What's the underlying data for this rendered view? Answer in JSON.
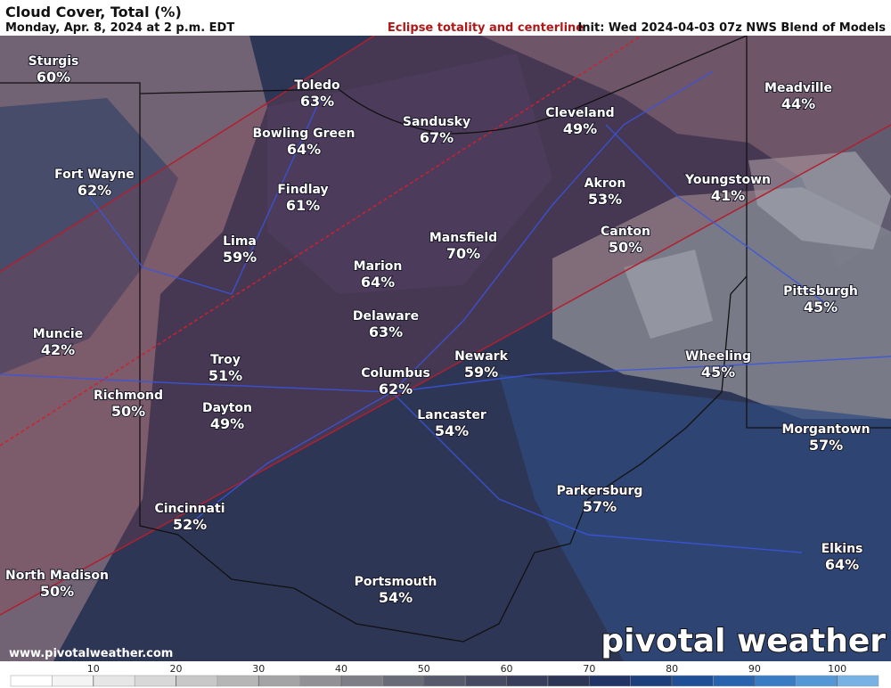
{
  "header": {
    "title": "Cloud Cover, Total (%)",
    "subtitle": "Monday, Apr. 8, 2024 at 2 p.m. EDT",
    "overlay_note": "Eclipse totality and centerline",
    "init": "Init: Wed 2024-04-03 07z NWS Blend of Models"
  },
  "cities": [
    {
      "name": "Sturgis",
      "value": "60%"
    },
    {
      "name": "Toledo",
      "value": "63%"
    },
    {
      "name": "Sandusky",
      "value": "67%"
    },
    {
      "name": "Cleveland",
      "value": "49%"
    },
    {
      "name": "Meadville",
      "value": "44%"
    },
    {
      "name": "Bowling Green",
      "value": "64%"
    },
    {
      "name": "Fort Wayne",
      "value": "62%"
    },
    {
      "name": "Findlay",
      "value": "61%"
    },
    {
      "name": "Akron",
      "value": "53%"
    },
    {
      "name": "Youngstown",
      "value": "41%"
    },
    {
      "name": "Lima",
      "value": "59%"
    },
    {
      "name": "Mansfield",
      "value": "70%"
    },
    {
      "name": "Canton",
      "value": "50%"
    },
    {
      "name": "Marion",
      "value": "64%"
    },
    {
      "name": "Pittsburgh",
      "value": "45%"
    },
    {
      "name": "Muncie",
      "value": "42%"
    },
    {
      "name": "Delaware",
      "value": "63%"
    },
    {
      "name": "Troy",
      "value": "51%"
    },
    {
      "name": "Columbus",
      "value": "62%"
    },
    {
      "name": "Newark",
      "value": "59%"
    },
    {
      "name": "Wheeling",
      "value": "45%"
    },
    {
      "name": "Richmond",
      "value": "50%"
    },
    {
      "name": "Dayton",
      "value": "49%"
    },
    {
      "name": "Lancaster",
      "value": "54%"
    },
    {
      "name": "Morgantown",
      "value": "57%"
    },
    {
      "name": "Parkersburg",
      "value": "57%"
    },
    {
      "name": "Cincinnati",
      "value": "52%"
    },
    {
      "name": "Elkins",
      "value": "64%"
    },
    {
      "name": "North Madison",
      "value": "50%"
    },
    {
      "name": "Portsmouth",
      "value": "54%"
    }
  ],
  "footer": {
    "url": "www.pivotalweather.com",
    "brand": "pivotal weather"
  },
  "colorbar": {
    "lim": [
      0,
      105
    ],
    "ticks": [
      10,
      20,
      30,
      40,
      50,
      60,
      70,
      80,
      90,
      100
    ],
    "colors": [
      "#ffffff",
      "#f4f4f4",
      "#e6e6e6",
      "#d8d8d8",
      "#c8c8c8",
      "#b6b6b6",
      "#a4a4a6",
      "#929296",
      "#7e7e86",
      "#6a6b78",
      "#575a6c",
      "#464a62",
      "#373d5a",
      "#2c3556",
      "#223466",
      "#1d3f7c",
      "#1f4f96",
      "#2863ad",
      "#3a7cc4",
      "#5497d6",
      "#78b2e4"
    ]
  }
}
